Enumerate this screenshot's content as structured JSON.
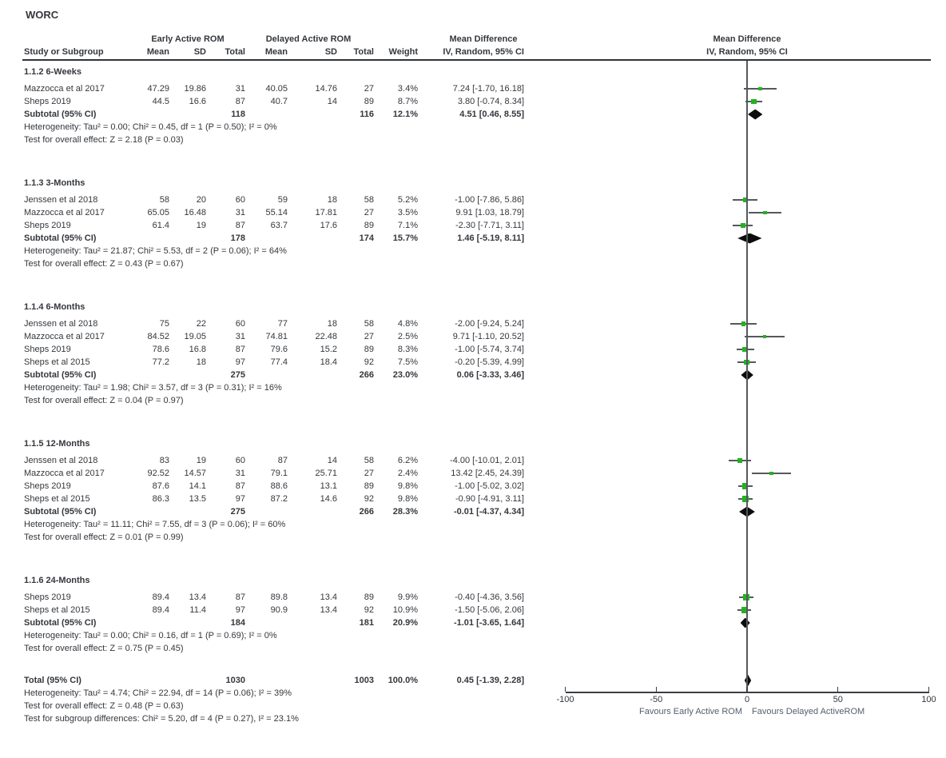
{
  "title": "WORC",
  "header": {
    "study_or_subgroup": "Study or Subgroup",
    "mean": "Mean",
    "sd": "SD",
    "total": "Total",
    "weight": "Weight"
  },
  "chart_data": {
    "type": "forest",
    "title": "WORC",
    "group1": "Early Active ROM",
    "group2": "Delayed Active ROM",
    "effect_measure": "Mean Difference",
    "method": "IV, Random, 95% CI",
    "colors": {
      "marker_green": "#22b322",
      "diamond_black": "#0d0d0d",
      "ci_line": "#55585c",
      "text": "#34373c",
      "favours_text": "#535f6e"
    },
    "axis": {
      "min": -100,
      "max": 100,
      "ticks": [
        -100,
        -50,
        0,
        50,
        100
      ],
      "favours_left": "Favours Early Active ROM",
      "favours_right": "Favours Delayed ActiveROM"
    },
    "sections": [
      {
        "label": "1.1.2 6-Weeks",
        "studies": [
          {
            "name": "Mazzocca et al 2017",
            "mean1": "47.29",
            "sd1": "19.86",
            "n1": "31",
            "mean2": "40.05",
            "sd2": "14.76",
            "n2": "27",
            "weight": "3.4%",
            "ci_text": "7.24 [-1.70, 16.18]",
            "effect": 7.24,
            "lo": -1.7,
            "hi": 16.18,
            "w": 3.4
          },
          {
            "name": "Sheps 2019",
            "mean1": "44.5",
            "sd1": "16.6",
            "n1": "87",
            "mean2": "40.7",
            "sd2": "14",
            "n2": "89",
            "weight": "8.7%",
            "ci_text": "3.80 [-0.74, 8.34]",
            "effect": 3.8,
            "lo": -0.74,
            "hi": 8.34,
            "w": 8.7
          }
        ],
        "subtotal": {
          "label": "Subtotal (95% CI)",
          "n1": "118",
          "n2": "116",
          "weight": "12.1%",
          "ci_text": "4.51 [0.46, 8.55]",
          "effect": 4.51,
          "lo": 0.46,
          "hi": 8.55
        },
        "heterogeneity": "Heterogeneity: Tau² = 0.00; Chi² = 0.45, df = 1 (P = 0.50); I² = 0%",
        "overall_effect": "Test for overall effect: Z = 2.18 (P = 0.03)"
      },
      {
        "label": "1.1.3 3-Months",
        "studies": [
          {
            "name": "Jenssen et al 2018",
            "mean1": "58",
            "sd1": "20",
            "n1": "60",
            "mean2": "59",
            "sd2": "18",
            "n2": "58",
            "weight": "5.2%",
            "ci_text": "-1.00 [-7.86, 5.86]",
            "effect": -1.0,
            "lo": -7.86,
            "hi": 5.86,
            "w": 5.2
          },
          {
            "name": "Mazzocca et al 2017",
            "mean1": "65.05",
            "sd1": "16.48",
            "n1": "31",
            "mean2": "55.14",
            "sd2": "17.81",
            "n2": "27",
            "weight": "3.5%",
            "ci_text": "9.91 [1.03, 18.79]",
            "effect": 9.91,
            "lo": 1.03,
            "hi": 18.79,
            "w": 3.5
          },
          {
            "name": "Sheps 2019",
            "mean1": "61.4",
            "sd1": "19",
            "n1": "87",
            "mean2": "63.7",
            "sd2": "17.6",
            "n2": "89",
            "weight": "7.1%",
            "ci_text": "-2.30 [-7.71, 3.11]",
            "effect": -2.3,
            "lo": -7.71,
            "hi": 3.11,
            "w": 7.1
          }
        ],
        "subtotal": {
          "label": "Subtotal (95% CI)",
          "n1": "178",
          "n2": "174",
          "weight": "15.7%",
          "ci_text": "1.46 [-5.19, 8.11]",
          "effect": 1.46,
          "lo": -5.19,
          "hi": 8.11
        },
        "heterogeneity": "Heterogeneity: Tau² = 21.87; Chi² = 5.53, df = 2 (P = 0.06); I² = 64%",
        "overall_effect": "Test for overall effect: Z = 0.43 (P = 0.67)"
      },
      {
        "label": "1.1.4 6-Months",
        "studies": [
          {
            "name": "Jenssen et al 2018",
            "mean1": "75",
            "sd1": "22",
            "n1": "60",
            "mean2": "77",
            "sd2": "18",
            "n2": "58",
            "weight": "4.8%",
            "ci_text": "-2.00 [-9.24, 5.24]",
            "effect": -2.0,
            "lo": -9.24,
            "hi": 5.24,
            "w": 4.8
          },
          {
            "name": "Mazzocca et al 2017",
            "mean1": "84.52",
            "sd1": "19.05",
            "n1": "31",
            "mean2": "74.81",
            "sd2": "22.48",
            "n2": "27",
            "weight": "2.5%",
            "ci_text": "9.71 [-1.10, 20.52]",
            "effect": 9.71,
            "lo": -1.1,
            "hi": 20.52,
            "w": 2.5
          },
          {
            "name": "Sheps 2019",
            "mean1": "78.6",
            "sd1": "16.8",
            "n1": "87",
            "mean2": "79.6",
            "sd2": "15.2",
            "n2": "89",
            "weight": "8.3%",
            "ci_text": "-1.00 [-5.74, 3.74]",
            "effect": -1.0,
            "lo": -5.74,
            "hi": 3.74,
            "w": 8.3
          },
          {
            "name": "Sheps et al 2015",
            "mean1": "77.2",
            "sd1": "18",
            "n1": "97",
            "mean2": "77.4",
            "sd2": "18.4",
            "n2": "92",
            "weight": "7.5%",
            "ci_text": "-0.20 [-5.39, 4.99]",
            "effect": -0.2,
            "lo": -5.39,
            "hi": 4.99,
            "w": 7.5
          }
        ],
        "subtotal": {
          "label": "Subtotal (95% CI)",
          "n1": "275",
          "n2": "266",
          "weight": "23.0%",
          "ci_text": "0.06 [-3.33, 3.46]",
          "effect": 0.06,
          "lo": -3.33,
          "hi": 3.46
        },
        "heterogeneity": "Heterogeneity: Tau² = 1.98; Chi² = 3.57, df = 3 (P = 0.31); I² = 16%",
        "overall_effect": "Test for overall effect: Z = 0.04 (P = 0.97)"
      },
      {
        "label": "1.1.5 12-Months",
        "studies": [
          {
            "name": "Jenssen et al 2018",
            "mean1": "83",
            "sd1": "19",
            "n1": "60",
            "mean2": "87",
            "sd2": "14",
            "n2": "58",
            "weight": "6.2%",
            "ci_text": "-4.00 [-10.01, 2.01]",
            "effect": -4.0,
            "lo": -10.01,
            "hi": 2.01,
            "w": 6.2
          },
          {
            "name": "Mazzocca et al 2017",
            "mean1": "92.52",
            "sd1": "14.57",
            "n1": "31",
            "mean2": "79.1",
            "sd2": "25.71",
            "n2": "27",
            "weight": "2.4%",
            "ci_text": "13.42 [2.45, 24.39]",
            "effect": 13.42,
            "lo": 2.45,
            "hi": 24.39,
            "w": 2.4
          },
          {
            "name": "Sheps 2019",
            "mean1": "87.6",
            "sd1": "14.1",
            "n1": "87",
            "mean2": "88.6",
            "sd2": "13.1",
            "n2": "89",
            "weight": "9.8%",
            "ci_text": "-1.00 [-5.02, 3.02]",
            "effect": -1.0,
            "lo": -5.02,
            "hi": 3.02,
            "w": 9.8
          },
          {
            "name": "Sheps et al 2015",
            "mean1": "86.3",
            "sd1": "13.5",
            "n1": "97",
            "mean2": "87.2",
            "sd2": "14.6",
            "n2": "92",
            "weight": "9.8%",
            "ci_text": "-0.90 [-4.91, 3.11]",
            "effect": -0.9,
            "lo": -4.91,
            "hi": 3.11,
            "w": 9.8
          }
        ],
        "subtotal": {
          "label": "Subtotal (95% CI)",
          "n1": "275",
          "n2": "266",
          "weight": "28.3%",
          "ci_text": "-0.01 [-4.37, 4.34]",
          "effect": -0.01,
          "lo": -4.37,
          "hi": 4.34
        },
        "heterogeneity": "Heterogeneity: Tau² = 11.11; Chi² = 7.55, df = 3 (P = 0.06); I² = 60%",
        "overall_effect": "Test for overall effect: Z = 0.01 (P = 0.99)"
      },
      {
        "label": "1.1.6 24-Months",
        "studies": [
          {
            "name": "Sheps 2019",
            "mean1": "89.4",
            "sd1": "13.4",
            "n1": "87",
            "mean2": "89.8",
            "sd2": "13.4",
            "n2": "89",
            "weight": "9.9%",
            "ci_text": "-0.40 [-4.36, 3.56]",
            "effect": -0.4,
            "lo": -4.36,
            "hi": 3.56,
            "w": 9.9
          },
          {
            "name": "Sheps et al 2015",
            "mean1": "89.4",
            "sd1": "11.4",
            "n1": "97",
            "mean2": "90.9",
            "sd2": "13.4",
            "n2": "92",
            "weight": "10.9%",
            "ci_text": "-1.50 [-5.06, 2.06]",
            "effect": -1.5,
            "lo": -5.06,
            "hi": 2.06,
            "w": 10.9
          }
        ],
        "subtotal": {
          "label": "Subtotal (95% CI)",
          "n1": "184",
          "n2": "181",
          "weight": "20.9%",
          "ci_text": "-1.01 [-3.65, 1.64]",
          "effect": -1.01,
          "lo": -3.65,
          "hi": 1.64
        },
        "heterogeneity": "Heterogeneity: Tau² = 0.00; Chi² = 0.16, df = 1 (P = 0.69); I² = 0%",
        "overall_effect": "Test for overall effect: Z = 0.75 (P = 0.45)"
      }
    ],
    "total": {
      "label": "Total (95% CI)",
      "n1": "1030",
      "n2": "1003",
      "weight": "100.0%",
      "ci_text": "0.45 [-1.39, 2.28]",
      "effect": 0.45,
      "lo": -1.39,
      "hi": 2.28,
      "heterogeneity": "Heterogeneity: Tau² = 4.74; Chi² = 22.94, df = 14 (P = 0.06); I² = 39%",
      "overall_effect": "Test for overall effect: Z = 0.48 (P = 0.63)",
      "subgroup_differences": "Test for subgroup differences: Chi² = 5.20, df = 4 (P = 0.27), I² = 23.1%"
    }
  }
}
